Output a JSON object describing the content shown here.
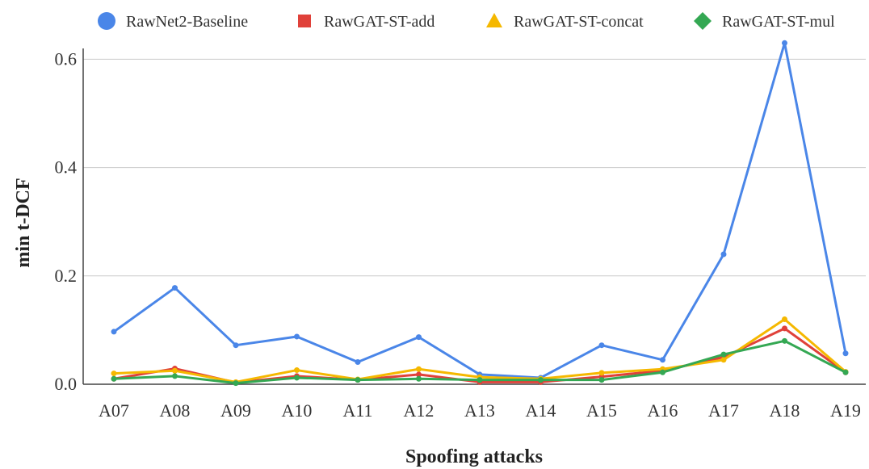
{
  "chart_data": {
    "type": "line",
    "title": "",
    "xlabel": "Spoofing attacks",
    "ylabel": "min t-DCF",
    "ylim": [
      0,
      0.62
    ],
    "yticks": [
      "0.0",
      "0.2",
      "0.4",
      "0.6"
    ],
    "ytick_values": [
      0,
      0.2,
      0.4,
      0.6
    ],
    "grid": "horizontal",
    "legend_position": "top",
    "categories": [
      "A07",
      "A08",
      "A09",
      "A10",
      "A11",
      "A12",
      "A13",
      "A14",
      "A15",
      "A16",
      "A17",
      "A18",
      "A19"
    ],
    "series": [
      {
        "name": "RawNet2-Baseline",
        "color": "#4a86e8",
        "marker": "circle",
        "values": [
          0.097,
          0.178,
          0.072,
          0.088,
          0.041,
          0.087,
          0.018,
          0.012,
          0.072,
          0.045,
          0.24,
          0.63,
          0.057
        ]
      },
      {
        "name": "RawGAT-ST-add",
        "color": "#e0413a",
        "marker": "square",
        "values": [
          0.01,
          0.029,
          0.003,
          0.015,
          0.008,
          0.018,
          0.004,
          0.004,
          0.014,
          0.025,
          0.05,
          0.103,
          0.022
        ]
      },
      {
        "name": "RawGAT-ST-concat",
        "color": "#f5b800",
        "marker": "triangle",
        "values": [
          0.02,
          0.025,
          0.004,
          0.026,
          0.009,
          0.028,
          0.013,
          0.01,
          0.021,
          0.028,
          0.045,
          0.12,
          0.023
        ]
      },
      {
        "name": "RawGAT-ST-mul",
        "color": "#34a853",
        "marker": "diamond",
        "values": [
          0.01,
          0.015,
          0.002,
          0.012,
          0.008,
          0.01,
          0.008,
          0.008,
          0.008,
          0.022,
          0.055,
          0.08,
          0.022
        ]
      }
    ]
  }
}
